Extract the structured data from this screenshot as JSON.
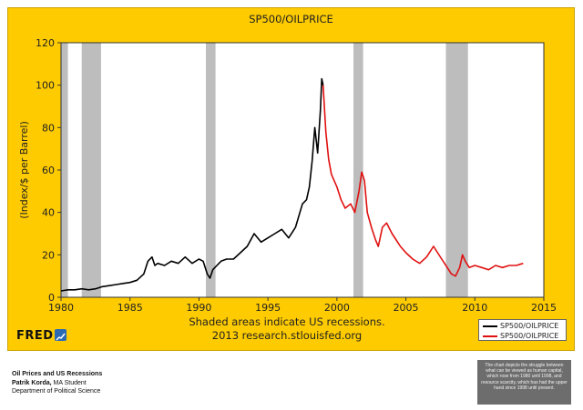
{
  "chart_data": {
    "type": "line",
    "title": "SP500/OILPRICE",
    "ylabel": "(Index/$ per Barrel)",
    "xlabel": "",
    "xlim": [
      1980,
      2015
    ],
    "ylim": [
      0,
      120
    ],
    "x_ticks": [
      "1980",
      "1985",
      "1990",
      "1995",
      "2000",
      "2005",
      "2010",
      "2015"
    ],
    "y_ticks": [
      "0",
      "20",
      "40",
      "60",
      "80",
      "100",
      "120"
    ],
    "recessions": [
      [
        1980.0,
        1980.5
      ],
      [
        1981.5,
        1982.9
      ],
      [
        1990.5,
        1991.2
      ],
      [
        2001.2,
        2001.9
      ],
      [
        2007.9,
        2009.5
      ]
    ],
    "series": [
      {
        "name": "SP500/OILPRICE",
        "color": "#000000",
        "x": [
          1980.0,
          1980.5,
          1981.0,
          1981.5,
          1982.0,
          1982.5,
          1983.0,
          1983.5,
          1984.0,
          1984.5,
          1985.0,
          1985.5,
          1986.0,
          1986.3,
          1986.6,
          1986.8,
          1987.0,
          1987.5,
          1988.0,
          1988.5,
          1989.0,
          1989.5,
          1990.0,
          1990.3,
          1990.6,
          1990.8,
          1991.0,
          1991.3,
          1991.6,
          1992.0,
          1992.5,
          1993.0,
          1993.5,
          1994.0,
          1994.5,
          1995.0,
          1995.5,
          1996.0,
          1996.5,
          1997.0,
          1997.5,
          1997.8,
          1998.0,
          1998.2,
          1998.4,
          1998.6,
          1998.8,
          1998.9,
          1999.0
        ],
        "y": [
          3,
          3.5,
          3.5,
          4,
          3.5,
          4,
          5,
          5.5,
          6,
          6.5,
          7,
          8,
          11,
          17,
          19,
          15,
          16,
          15,
          17,
          16,
          19,
          16,
          18,
          17,
          11,
          9,
          13,
          15,
          17,
          18,
          18,
          21,
          24,
          30,
          26,
          28,
          30,
          32,
          28,
          33,
          44,
          46,
          52,
          64,
          80,
          68,
          88,
          103,
          100
        ]
      },
      {
        "name": "SP500/OILPRICE",
        "color": "#e01010",
        "x": [
          1999.0,
          1999.2,
          1999.4,
          1999.6,
          1999.8,
          2000.0,
          2000.3,
          2000.6,
          2001.0,
          2001.3,
          2001.6,
          2001.8,
          2002.0,
          2002.2,
          2002.5,
          2002.8,
          2003.0,
          2003.3,
          2003.6,
          2004.0,
          2004.3,
          2004.6,
          2005.0,
          2005.5,
          2006.0,
          2006.5,
          2007.0,
          2007.3,
          2007.6,
          2008.0,
          2008.3,
          2008.6,
          2008.9,
          2009.1,
          2009.3,
          2009.6,
          2010.0,
          2010.5,
          2011.0,
          2011.5,
          2012.0,
          2012.5,
          2013.0,
          2013.5
        ],
        "y": [
          100,
          78,
          65,
          58,
          55,
          52,
          46,
          42,
          44,
          40,
          50,
          59,
          55,
          40,
          33,
          27,
          24,
          33,
          35,
          30,
          27,
          24,
          21,
          18,
          16,
          19,
          24,
          21,
          18,
          14,
          11,
          10,
          14,
          20,
          17,
          14,
          15,
          14,
          13,
          15,
          14,
          15,
          15,
          16
        ]
      }
    ]
  },
  "footnote_line1": "Shaded areas indicate US recessions.",
  "footnote_line2": "2013 research.stlouisfed.org",
  "legend_items": [
    "SP500/OILPRICE",
    "SP500/OILPRICE"
  ],
  "brand": "FRED",
  "brand_icon": "fred-graph-icon",
  "caption": {
    "title": "Oil Prices and US Recessions",
    "author_name": "Patrik Korda,",
    "author_role": " MA Student",
    "department": "Department of Political Science"
  },
  "note": "The chart depicts the struggle between what can be viewed as human capital, which rose from 1980 until 1998, and resource scarcity, which has had the upper hand since 1998 until present.",
  "colors": {
    "frame": "#fecb00",
    "plot": "#ffffff",
    "recession": "#bdbdbd",
    "series_black": "#000000",
    "series_red": "#e01010"
  }
}
